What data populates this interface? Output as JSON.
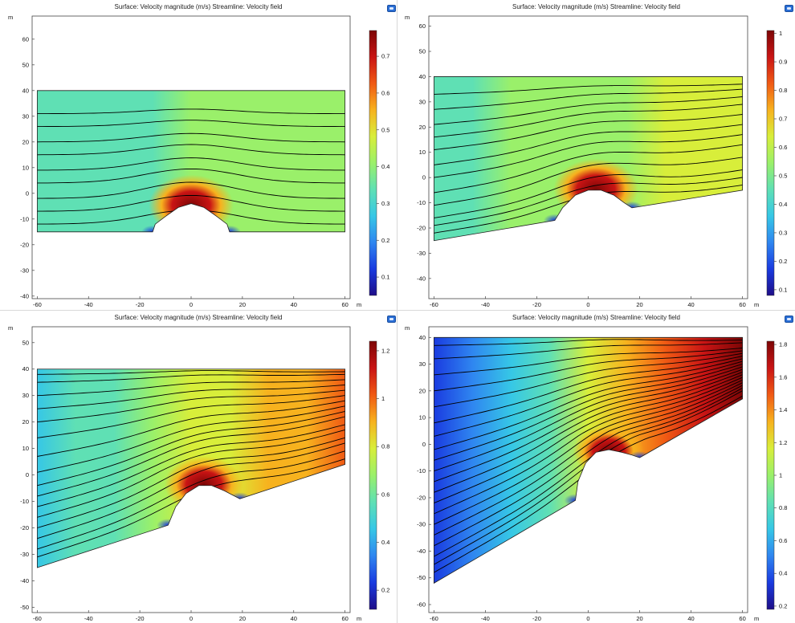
{
  "colors": {
    "colormap": [
      "#1e0e88",
      "#1a3be0",
      "#2f86f0",
      "#36c7e6",
      "#5fe0b4",
      "#9af06a",
      "#d8ee3a",
      "#f7b21e",
      "#f05a14",
      "#c91414",
      "#7d0606"
    ],
    "border": "#222222",
    "streamline": "#000000",
    "camera_icon": "#2a6fd6"
  },
  "panels": [
    {
      "title": "Surface: Velocity magnitude (m/s)  Streamline: Velocity field",
      "camera_icon": "camera-icon",
      "axis_unit": "m",
      "chart_data": {
        "type": "heatmap",
        "x_ticks": [
          -60,
          -40,
          -20,
          0,
          20,
          40,
          60
        ],
        "y_ticks": [
          -40,
          -30,
          -20,
          -10,
          0,
          10,
          20,
          30,
          40,
          50,
          60
        ],
        "xlim": [
          -62,
          62
        ],
        "ylim": [
          -41,
          69
        ],
        "domain_polygon": [
          [
            -60,
            -15
          ],
          [
            -15,
            -15
          ],
          [
            -14,
            -12
          ],
          [
            -10,
            -9
          ],
          [
            -5,
            -5.5
          ],
          [
            0,
            -4
          ],
          [
            5,
            -5.5
          ],
          [
            10,
            -9
          ],
          [
            14,
            -12
          ],
          [
            15,
            -15
          ],
          [
            60,
            -15
          ],
          [
            60,
            40
          ],
          [
            -60,
            40
          ]
        ],
        "bump": {
          "x0": -15,
          "x1": 15,
          "peak_x": 0,
          "peak_y": -4
        },
        "streamlines": {
          "count": 9,
          "inlet_y": [
            -12,
            -7,
            -2,
            4,
            9,
            15,
            20,
            26,
            31
          ],
          "outlet_y": [
            -12,
            -7,
            -2,
            4,
            9,
            15,
            20,
            26,
            31
          ]
        },
        "colorbar": {
          "min": 0.05,
          "max": 0.77,
          "ticks": [
            0.1,
            0.2,
            0.3,
            0.4,
            0.5,
            0.6,
            0.7
          ]
        },
        "field_stops": [
          0.41,
          0.46
        ]
      }
    },
    {
      "title": "Surface: Velocity magnitude (m/s)  Streamline: Velocity field",
      "camera_icon": "camera-icon",
      "axis_unit": "m",
      "chart_data": {
        "type": "heatmap",
        "x_ticks": [
          -60,
          -40,
          -20,
          0,
          20,
          40,
          60
        ],
        "y_ticks": [
          -40,
          -30,
          -20,
          -10,
          0,
          10,
          20,
          30,
          40,
          50,
          60
        ],
        "xlim": [
          -62,
          62
        ],
        "ylim": [
          -48,
          64
        ],
        "domain_polygon": [
          [
            -60,
            -25
          ],
          [
            -13,
            -17
          ],
          [
            -10,
            -12
          ],
          [
            -5,
            -7
          ],
          [
            0,
            -5
          ],
          [
            5,
            -5
          ],
          [
            10,
            -7
          ],
          [
            14,
            -10
          ],
          [
            17,
            -12
          ],
          [
            60,
            -5
          ],
          [
            60,
            40
          ],
          [
            -60,
            40
          ]
        ],
        "bump": {
          "x0": -13,
          "x1": 17,
          "peak_x": 3,
          "peak_y": -4
        },
        "streamlines": {
          "count": 12,
          "inlet_y": [
            -22,
            -19,
            -16,
            -11,
            -6,
            0,
            5,
            11,
            16,
            21,
            27,
            33
          ],
          "outlet_y": [
            -3,
            0,
            3,
            8,
            13,
            17,
            21,
            25,
            29,
            32,
            35,
            37
          ]
        },
        "colorbar": {
          "min": 0.08,
          "max": 1.01,
          "ticks": [
            0.1,
            0.2,
            0.3,
            0.4,
            0.5,
            0.6,
            0.7,
            0.8,
            0.9,
            1
          ]
        },
        "field_stops": [
          0.41,
          0.55
        ]
      }
    },
    {
      "title": "Surface: Velocity magnitude (m/s)  Streamline: Velocity field",
      "camera_icon": "camera-icon",
      "axis_unit": "m",
      "chart_data": {
        "type": "heatmap",
        "x_ticks": [
          -60,
          -40,
          -20,
          0,
          20,
          40,
          60
        ],
        "y_ticks": [
          -50,
          -40,
          -30,
          -20,
          -10,
          0,
          10,
          20,
          30,
          40,
          50
        ],
        "xlim": [
          -62,
          62
        ],
        "ylim": [
          -52,
          56
        ],
        "domain_polygon": [
          [
            -60,
            -35
          ],
          [
            -9,
            -19
          ],
          [
            -6,
            -12
          ],
          [
            -2,
            -7
          ],
          [
            3,
            -4
          ],
          [
            8,
            -4
          ],
          [
            13,
            -6
          ],
          [
            19,
            -9
          ],
          [
            60,
            4
          ],
          [
            60,
            40
          ],
          [
            -60,
            40
          ]
        ],
        "bump": {
          "x0": -9,
          "x1": 19,
          "peak_x": 5,
          "peak_y": -3
        },
        "streamlines": {
          "count": 16,
          "inlet_y": [
            -31,
            -28,
            -24,
            -20,
            -16,
            -12,
            -8,
            -4,
            1,
            7,
            14,
            20,
            25,
            30,
            35,
            38
          ],
          "outlet_y": [
            6,
            9,
            12,
            14,
            17,
            19,
            22,
            24,
            26,
            28,
            30,
            32,
            34,
            36,
            38,
            39
          ]
        },
        "colorbar": {
          "min": 0.12,
          "max": 1.24,
          "ticks": [
            0.2,
            0.4,
            0.6,
            0.8,
            1,
            1.2
          ]
        },
        "field_stops": [
          0.32,
          0.78
        ]
      }
    },
    {
      "title": "Surface: Velocity magnitude (m/s)  Streamline: Velocity field",
      "camera_icon": "camera-icon",
      "axis_unit": "m",
      "chart_data": {
        "type": "heatmap",
        "x_ticks": [
          -60,
          -40,
          -20,
          0,
          20,
          40,
          60
        ],
        "y_ticks": [
          -60,
          -50,
          -40,
          -30,
          -20,
          -10,
          0,
          10,
          20,
          30,
          40
        ],
        "xlim": [
          -62,
          62
        ],
        "ylim": [
          -63,
          44
        ],
        "domain_polygon": [
          [
            -60,
            -52
          ],
          [
            -5,
            -21
          ],
          [
            -4,
            -14
          ],
          [
            -1,
            -7
          ],
          [
            3,
            -3
          ],
          [
            8,
            -2
          ],
          [
            13,
            -3
          ],
          [
            17,
            -4
          ],
          [
            20,
            -5
          ],
          [
            60,
            17
          ],
          [
            60,
            40
          ],
          [
            -60,
            40
          ]
        ],
        "bump": {
          "x0": -5,
          "x1": 20,
          "peak_x": 8,
          "peak_y": -2
        },
        "streamlines": {
          "count": 20,
          "inlet_y": [
            -48,
            -45,
            -42,
            -38,
            -34,
            -30,
            -26,
            -22,
            -18,
            -14,
            -10,
            -6,
            -2,
            3,
            8,
            14,
            20,
            26,
            32,
            37
          ],
          "outlet_y": [
            18,
            20,
            21,
            22,
            23,
            24,
            25,
            26,
            27,
            28,
            29,
            30,
            31,
            32,
            33,
            34,
            35,
            36,
            38,
            39
          ]
        },
        "colorbar": {
          "min": 0.18,
          "max": 1.82,
          "ticks": [
            0.2,
            0.4,
            0.6,
            0.8,
            1,
            1.2,
            1.4,
            1.6,
            1.8
          ]
        },
        "field_stops": [
          0.1,
          1.0
        ]
      }
    }
  ]
}
